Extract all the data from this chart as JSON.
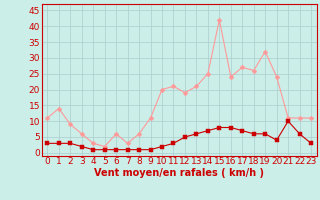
{
  "hours": [
    0,
    1,
    2,
    3,
    4,
    5,
    6,
    7,
    8,
    9,
    10,
    11,
    12,
    13,
    14,
    15,
    16,
    17,
    18,
    19,
    20,
    21,
    22,
    23
  ],
  "wind_avg": [
    3,
    3,
    3,
    2,
    1,
    1,
    1,
    1,
    1,
    1,
    2,
    3,
    5,
    6,
    7,
    8,
    8,
    7,
    6,
    6,
    4,
    10,
    6,
    3
  ],
  "wind_gust": [
    11,
    14,
    9,
    6,
    3,
    2,
    6,
    3,
    6,
    11,
    20,
    21,
    19,
    21,
    25,
    42,
    24,
    27,
    26,
    32,
    24,
    11,
    11,
    11
  ],
  "bg_color": "#cceee8",
  "grid_color": "#aacccc",
  "line_avg_color": "#cc0000",
  "line_gust_color": "#ff9999",
  "marker_size": 2.5,
  "xlabel": "Vent moyen/en rafales ( km/h )",
  "xlabel_color": "#cc0000",
  "xlabel_fontsize": 7,
  "ylabel_ticks": [
    0,
    5,
    10,
    15,
    20,
    25,
    30,
    35,
    40,
    45
  ],
  "ylim": [
    -1,
    47
  ],
  "tick_color": "#cc0000",
  "tick_fontsize": 6.5
}
